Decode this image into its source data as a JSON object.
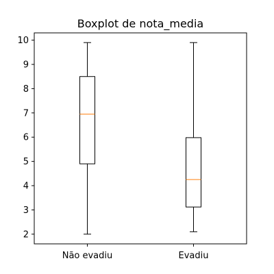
{
  "chart_data": {
    "type": "boxplot",
    "title": "Boxplot de nota_media",
    "xlabel": "",
    "ylabel": "",
    "categories": [
      "Não evadiu",
      "Evadiu"
    ],
    "boxes": [
      {
        "category": "Não evadiu",
        "whisker_low": 2.0,
        "q1": 4.9,
        "median": 6.95,
        "q3": 8.5,
        "whisker_high": 9.9
      },
      {
        "category": "Evadiu",
        "whisker_low": 2.1,
        "q1": 3.12,
        "median": 4.25,
        "q3": 5.98,
        "whisker_high": 9.9
      }
    ],
    "ylim": [
      1.6,
      10.3
    ],
    "yticks": [
      2,
      3,
      4,
      5,
      6,
      7,
      8,
      9,
      10
    ],
    "grid": false,
    "colors": {
      "box": "#000000",
      "median": "#ff7f0e",
      "whisker": "#000000"
    }
  }
}
